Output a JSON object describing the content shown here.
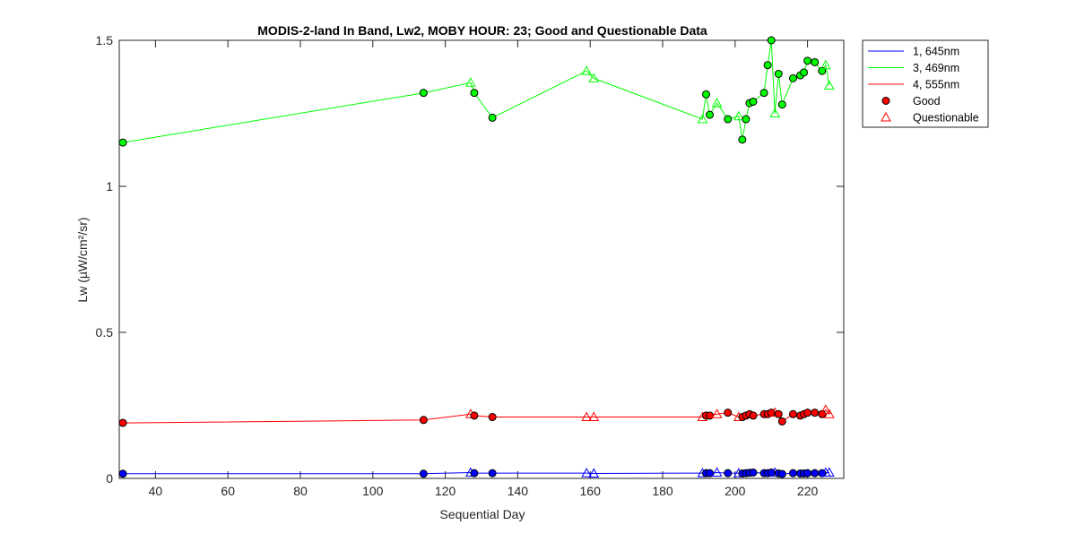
{
  "chart_data": {
    "type": "line",
    "title": "MODIS-2-land In Band,  Lw2, MOBY HOUR: 23;  Good and Questionable Data",
    "xlabel": "Sequential Day",
    "ylabel": "Lw (µW/cm²/sr)",
    "xlim": [
      30,
      230
    ],
    "ylim": [
      0,
      1.5
    ],
    "xticks": [
      40,
      60,
      80,
      100,
      120,
      140,
      160,
      180,
      200,
      220
    ],
    "yticks": [
      0,
      0.5,
      1,
      1.5
    ],
    "ytick_labels": [
      "0",
      "0.5",
      "1",
      "1.5"
    ],
    "grid": false,
    "legend_position": "outside-top-right",
    "legend": [
      {
        "label": "1, 645nm",
        "kind": "line",
        "color": "#0000ff"
      },
      {
        "label": "3, 469nm",
        "kind": "line",
        "color": "#00ff00"
      },
      {
        "label": "4, 555nm",
        "kind": "line",
        "color": "#ff0000"
      },
      {
        "label": "Good",
        "kind": "circle",
        "color": "#ff0000"
      },
      {
        "label": "Questionable",
        "kind": "triangle",
        "color": "#ff0000"
      }
    ],
    "series": [
      {
        "name": "3, 469nm",
        "color": "#00ff00",
        "x": [
          31,
          114,
          127,
          128,
          133,
          159,
          161,
          191,
          192,
          193,
          195,
          198,
          201,
          202,
          203,
          204,
          205,
          208,
          209,
          210,
          211,
          212,
          213,
          216,
          218,
          219,
          220,
          222,
          224,
          225,
          226
        ],
        "y": [
          1.15,
          1.32,
          1.355,
          1.32,
          1.235,
          1.395,
          1.37,
          1.23,
          1.315,
          1.245,
          1.285,
          1.23,
          1.24,
          1.16,
          1.23,
          1.285,
          1.29,
          1.32,
          1.415,
          1.5,
          1.25,
          1.385,
          1.28,
          1.37,
          1.38,
          1.39,
          1.43,
          1.425,
          1.395,
          1.415,
          1.345
        ],
        "quality": [
          "G",
          "G",
          "Q",
          "G",
          "G",
          "Q",
          "Q",
          "Q",
          "G",
          "G",
          "Q",
          "G",
          "Q",
          "G",
          "G",
          "G",
          "G",
          "G",
          "G",
          "G",
          "Q",
          "G",
          "G",
          "G",
          "G",
          "G",
          "G",
          "G",
          "G",
          "Q",
          "Q"
        ]
      },
      {
        "name": "4, 555nm",
        "color": "#ff0000",
        "x": [
          31,
          114,
          127,
          128,
          133,
          159,
          161,
          191,
          192,
          193,
          195,
          198,
          201,
          202,
          203,
          204,
          205,
          208,
          209,
          210,
          211,
          212,
          213,
          216,
          218,
          219,
          220,
          222,
          224,
          225,
          226
        ],
        "y": [
          0.19,
          0.2,
          0.22,
          0.215,
          0.21,
          0.21,
          0.21,
          0.21,
          0.215,
          0.215,
          0.22,
          0.225,
          0.21,
          0.21,
          0.215,
          0.22,
          0.215,
          0.22,
          0.22,
          0.225,
          0.225,
          0.22,
          0.195,
          0.22,
          0.215,
          0.22,
          0.225,
          0.225,
          0.22,
          0.235,
          0.22
        ],
        "quality": [
          "G",
          "G",
          "Q",
          "G",
          "G",
          "Q",
          "Q",
          "Q",
          "G",
          "G",
          "Q",
          "G",
          "Q",
          "G",
          "G",
          "G",
          "G",
          "G",
          "G",
          "G",
          "Q",
          "G",
          "G",
          "G",
          "G",
          "G",
          "G",
          "G",
          "G",
          "Q",
          "Q"
        ]
      },
      {
        "name": "1, 645nm",
        "color": "#0000ff",
        "x": [
          31,
          114,
          127,
          128,
          133,
          159,
          161,
          191,
          192,
          193,
          195,
          198,
          201,
          202,
          203,
          204,
          205,
          208,
          209,
          210,
          211,
          212,
          213,
          216,
          218,
          219,
          220,
          222,
          224,
          225,
          226
        ],
        "y": [
          0.016,
          0.016,
          0.02,
          0.018,
          0.018,
          0.018,
          0.017,
          0.018,
          0.018,
          0.018,
          0.02,
          0.018,
          0.018,
          0.017,
          0.018,
          0.019,
          0.02,
          0.018,
          0.018,
          0.02,
          0.02,
          0.017,
          0.015,
          0.018,
          0.017,
          0.017,
          0.018,
          0.018,
          0.018,
          0.02,
          0.02
        ],
        "quality": [
          "G",
          "G",
          "Q",
          "G",
          "G",
          "Q",
          "Q",
          "Q",
          "G",
          "G",
          "Q",
          "G",
          "Q",
          "G",
          "G",
          "G",
          "G",
          "G",
          "G",
          "G",
          "Q",
          "G",
          "G",
          "G",
          "G",
          "G",
          "G",
          "G",
          "G",
          "Q",
          "Q"
        ]
      }
    ]
  }
}
